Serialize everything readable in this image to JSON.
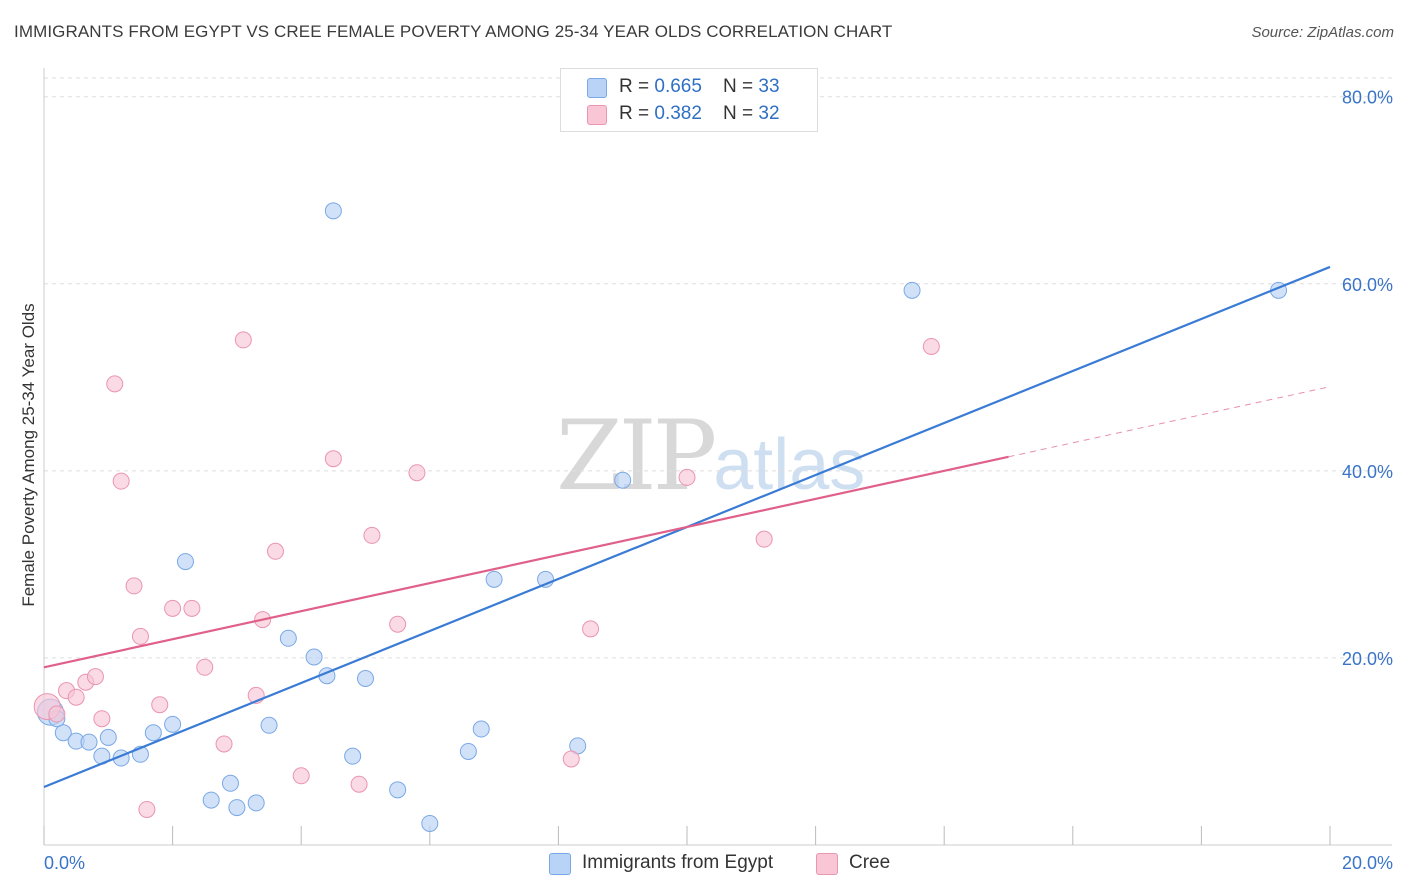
{
  "title": "IMMIGRANTS FROM EGYPT VS CREE FEMALE POVERTY AMONG 25-34 YEAR OLDS CORRELATION CHART",
  "source": "Source: ZipAtlas.com",
  "watermark": {
    "zip": "ZIP",
    "atlas": "atlas"
  },
  "colors": {
    "blue": "#3a7bd5",
    "blue_fill": "#b8d3f5",
    "pink": "#e0608a",
    "pink_fill": "#f8c6d5",
    "axis_text": "#3a74c8",
    "grid": "#dddddd"
  },
  "legend": {
    "rows": [
      {
        "r_label": "R = ",
        "r_value": "0.665",
        "n_label": "N = ",
        "n_value": "33"
      },
      {
        "r_label": "R = ",
        "r_value": "0.382",
        "n_label": "N = ",
        "n_value": "32"
      }
    ]
  },
  "bottom_legend": [
    "Immigrants from Egypt",
    "Cree"
  ],
  "chart_data": {
    "type": "scatter",
    "title": "IMMIGRANTS FROM EGYPT VS CREE FEMALE POVERTY AMONG 25-34 YEAR OLDS CORRELATION CHART",
    "xlabel": "",
    "ylabel": "Female Poverty Among 25-34 Year Olds",
    "xlim": [
      0,
      20
    ],
    "ylim": [
      0,
      82
    ],
    "x_tick_labels": [
      "0.0%",
      "20.0%"
    ],
    "y_ticks": [
      20,
      40,
      60,
      80
    ],
    "y_tick_labels": [
      "20.0%",
      "40.0%",
      "60.0%",
      "80.0%"
    ],
    "grid": true,
    "legend_position": "top-center",
    "series": [
      {
        "name": "Immigrants from Egypt",
        "color": "#3a7bd5",
        "x": [
          0.1,
          0.3,
          0.5,
          0.7,
          0.9,
          1.0,
          1.2,
          1.5,
          1.7,
          2.0,
          2.2,
          2.6,
          2.9,
          3.0,
          3.3,
          3.5,
          3.8,
          4.2,
          4.4,
          4.5,
          4.8,
          5.0,
          5.5,
          6.0,
          6.6,
          6.8,
          7.0,
          7.8,
          8.3,
          9.0,
          13.5,
          19.2,
          0.2
        ],
        "y": [
          14.2,
          12.0,
          11.1,
          11.0,
          9.5,
          11.5,
          9.3,
          9.7,
          12.0,
          12.9,
          30.3,
          4.8,
          6.6,
          4.0,
          4.5,
          12.8,
          22.1,
          20.1,
          18.1,
          67.8,
          9.5,
          17.8,
          5.9,
          2.3,
          10.0,
          12.4,
          28.4,
          28.4,
          10.6,
          39.0,
          59.3,
          59.3,
          13.5
        ],
        "trend": {
          "x": [
            0,
            20
          ],
          "y": [
            6.2,
            61.8
          ]
        }
      },
      {
        "name": "Cree",
        "color": "#e0608a",
        "x": [
          0.05,
          0.2,
          0.35,
          0.5,
          0.65,
          0.8,
          0.9,
          1.1,
          1.2,
          1.4,
          1.5,
          1.6,
          1.8,
          2.0,
          2.3,
          2.5,
          2.8,
          3.1,
          3.3,
          3.4,
          3.6,
          4.0,
          4.5,
          4.9,
          5.1,
          5.5,
          5.8,
          8.2,
          8.5,
          10.0,
          11.2,
          13.8
        ],
        "y": [
          14.8,
          14.0,
          16.5,
          15.8,
          17.4,
          18.0,
          13.5,
          49.3,
          38.9,
          27.7,
          22.3,
          3.8,
          15.0,
          25.3,
          25.3,
          19.0,
          10.8,
          54.0,
          16.0,
          24.1,
          31.4,
          7.4,
          41.3,
          6.5,
          33.1,
          23.6,
          39.8,
          9.2,
          23.1,
          39.3,
          32.7,
          53.3
        ],
        "trend": {
          "x": [
            0,
            15
          ],
          "y": [
            19.0,
            41.5
          ]
        },
        "trend_ext": {
          "x": [
            15,
            20
          ],
          "y": [
            41.5,
            49.0
          ]
        }
      }
    ]
  }
}
